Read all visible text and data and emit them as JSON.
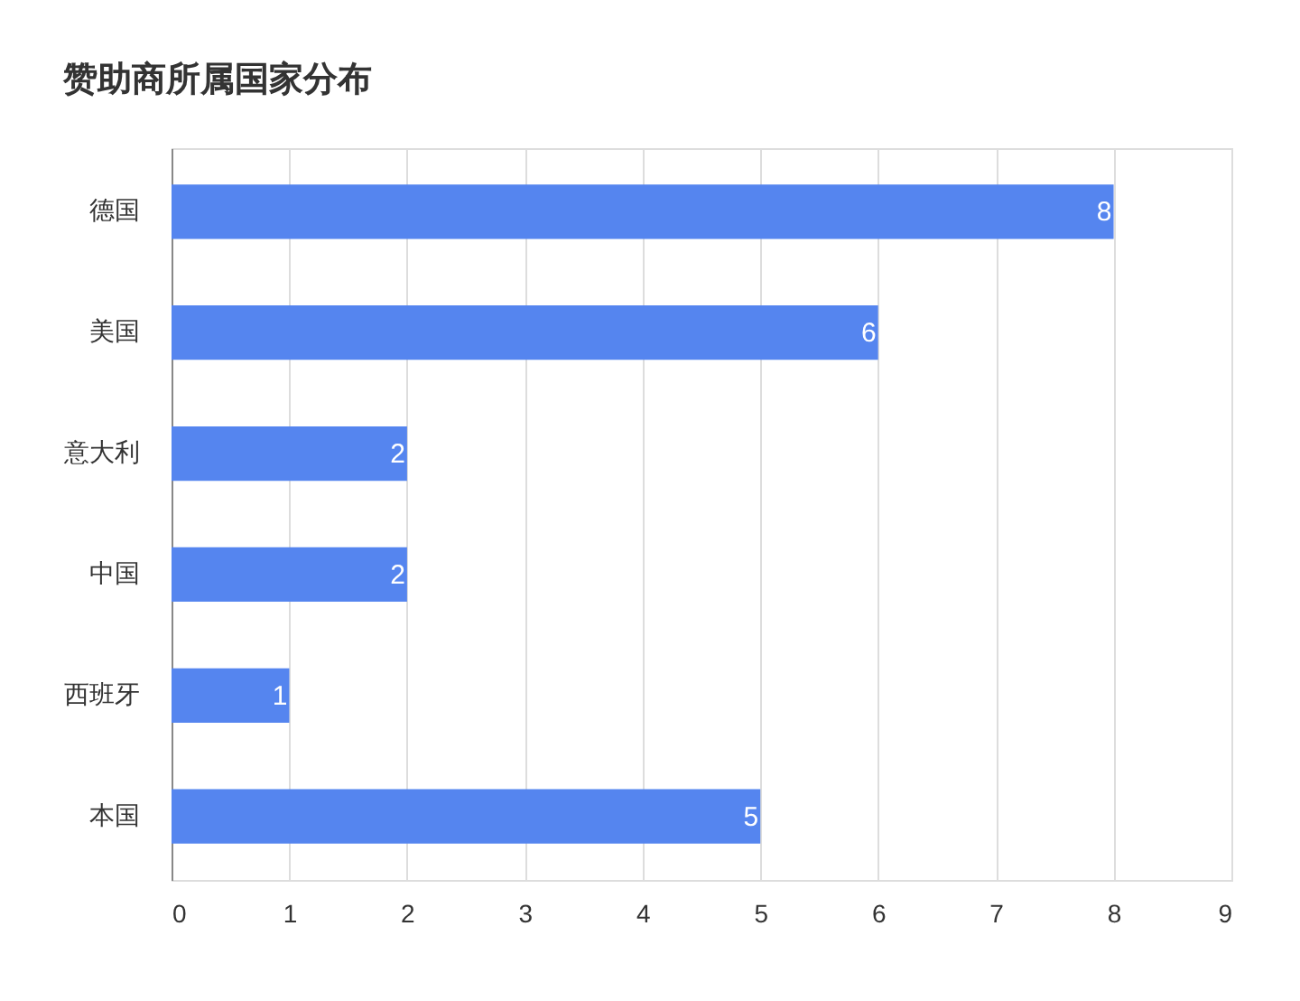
{
  "chart_data": {
    "type": "bar",
    "orientation": "horizontal",
    "title": "赞助商所属国家分布",
    "categories": [
      "德国",
      "美国",
      "意大利",
      "中国",
      "西班牙",
      "本国"
    ],
    "values": [
      8,
      6,
      2,
      2,
      1,
      5
    ],
    "color": "#5585ef",
    "xlim": [
      0,
      9
    ],
    "xticks": [
      0,
      1,
      2,
      3,
      4,
      5,
      6,
      7,
      8,
      9
    ],
    "grid": "x",
    "data_labels": true
  }
}
